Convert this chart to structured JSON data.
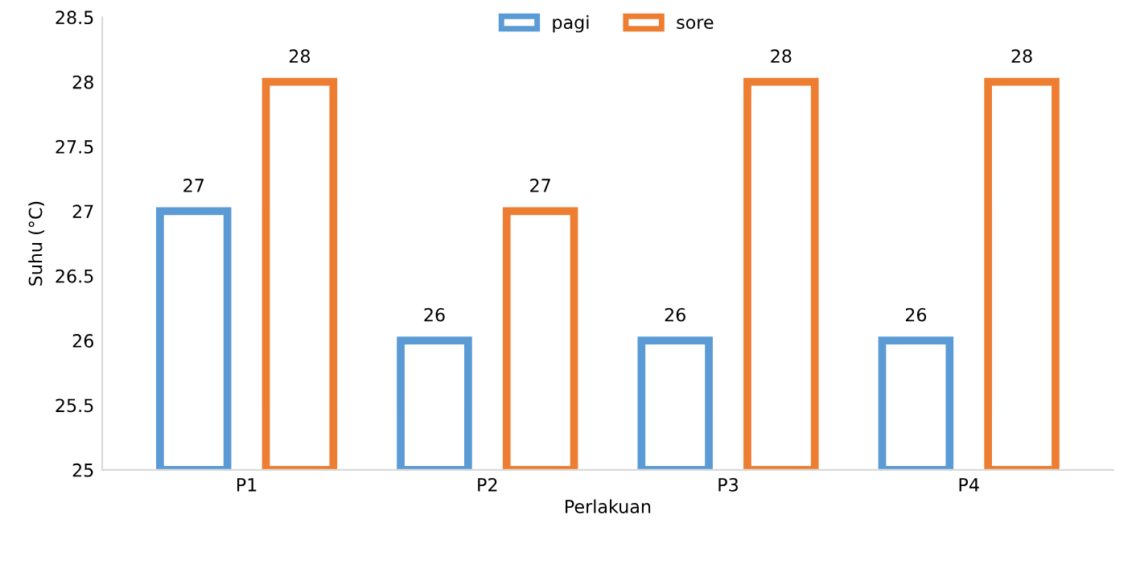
{
  "chart_data": {
    "type": "bar",
    "xlabel": "Perlakuan",
    "ylabel": "Suhu (°C)",
    "categories": [
      "P1",
      "P2",
      "P3",
      "P4"
    ],
    "series": [
      {
        "name": "pagi",
        "color": "#5b9bd5",
        "values": [
          27,
          26,
          26,
          26
        ]
      },
      {
        "name": "sore",
        "color": "#ed7d31",
        "values": [
          28,
          27,
          28,
          28
        ]
      }
    ],
    "ylim": [
      25,
      28.5
    ],
    "yticks": [
      25,
      25.5,
      26,
      26.5,
      27,
      27.5,
      28,
      28.5
    ],
    "data_labels": true,
    "legend": "top",
    "grid": false
  }
}
